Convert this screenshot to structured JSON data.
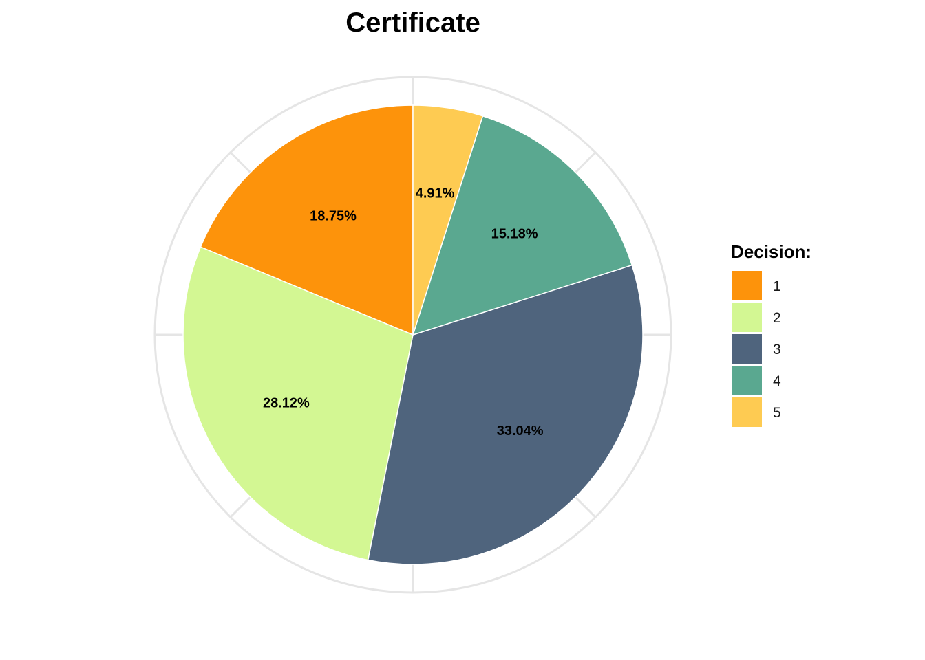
{
  "chart_data": {
    "type": "pie",
    "title": "Certificate",
    "categories": [
      "1",
      "2",
      "3",
      "4",
      "5"
    ],
    "values": [
      18.75,
      28.12,
      33.04,
      15.18,
      4.91
    ],
    "labels": [
      "18.75%",
      "28.12%",
      "33.04%",
      "15.18%",
      "4.91%"
    ],
    "colors": [
      "#FD930B",
      "#D3F793",
      "#4F647D",
      "#5AA890",
      "#FECB52"
    ],
    "start_angle": "12 o'clock",
    "direction": "counter-clockwise from category 1",
    "legend": {
      "title": "Decision:",
      "placement": "right"
    },
    "grid": true,
    "grid_color": "#E5E5E5"
  }
}
